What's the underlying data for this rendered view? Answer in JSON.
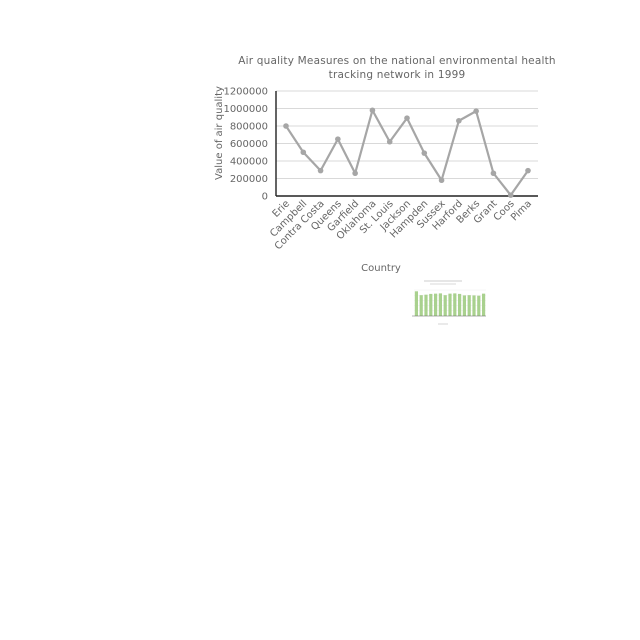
{
  "chart_data": {
    "type": "line",
    "title": "Air quality Measures on the national environmental health tracking network in 1999",
    "xlabel": "Country",
    "ylabel": "Value of air quality",
    "ylim": [
      0,
      1200000
    ],
    "yticks": [
      0,
      200000,
      400000,
      600000,
      800000,
      1000000,
      1200000
    ],
    "grid": true,
    "categories": [
      "Erie",
      "Campbell",
      "Contra Costa",
      "Queens",
      "Garfield",
      "Oklahoma",
      "St. Louis",
      "Jackson",
      "Hampden",
      "Sussex",
      "Harford",
      "Berks",
      "Grant",
      "Coos",
      "Pima"
    ],
    "values": [
      800000,
      500000,
      290000,
      650000,
      260000,
      980000,
      620000,
      890000,
      490000,
      180000,
      860000,
      970000,
      260000,
      10000,
      290000
    ],
    "color": "#a6a6a6"
  },
  "inset_chart": {
    "type": "bar",
    "color": "#a9d18e",
    "values": [
      0.95,
      0.8,
      0.82,
      0.85,
      0.86,
      0.87,
      0.8,
      0.86,
      0.87,
      0.85,
      0.79,
      0.8,
      0.79,
      0.78,
      0.86
    ]
  }
}
